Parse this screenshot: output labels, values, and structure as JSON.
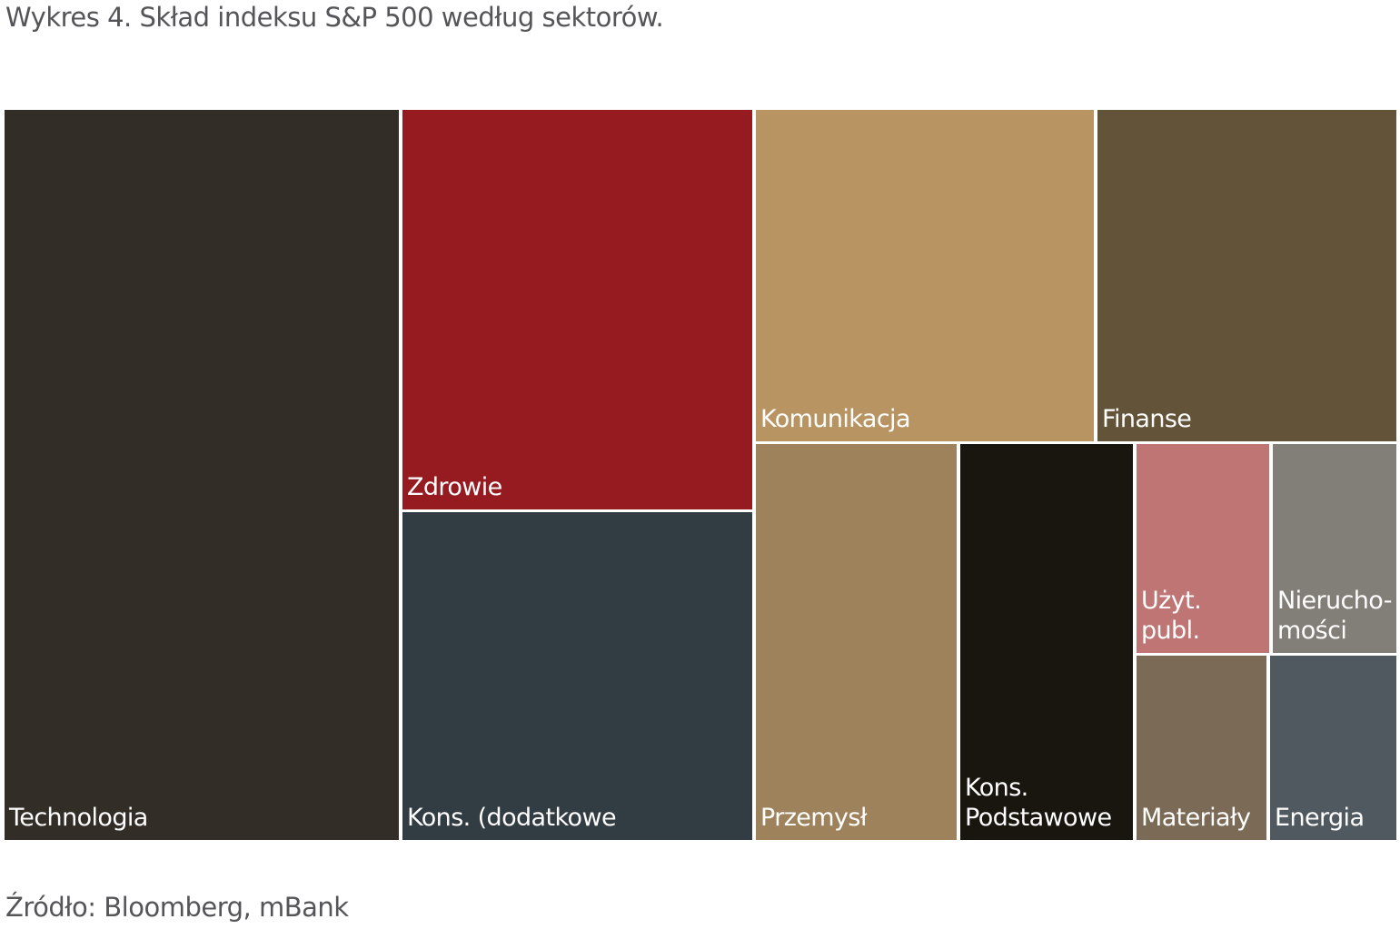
{
  "chart_data": {
    "type": "treemap",
    "title": "Wykres 4. Skład indeksu S&P 500 według sektorów.",
    "source": "Źródło: Bloomberg, mBank",
    "unit": "approx. % of index (estimated from area)",
    "items": [
      {
        "name": "Technologia",
        "lines": [
          "Technologia"
        ],
        "value": 28.3,
        "color": "#322d27"
      },
      {
        "name": "Zdrowie",
        "lines": [
          "Zdrowie"
        ],
        "value": 13.8,
        "color": "#951b21"
      },
      {
        "name": "Kons. (dodatkowe",
        "lines": [
          "Kons. (dodatkowe"
        ],
        "value": 11.3,
        "color": "#323c43"
      },
      {
        "name": "Komunikacja",
        "lines": [
          "Komunikacja"
        ],
        "value": 11.0,
        "color": "#b89462"
      },
      {
        "name": "Finanse",
        "lines": [
          "Finanse"
        ],
        "value": 9.8,
        "color": "#635338"
      },
      {
        "name": "Przemysł",
        "lines": [
          "Przemysł"
        ],
        "value": 7.8,
        "color": "#9e825b"
      },
      {
        "name": "Kons. Podstawowe",
        "lines": [
          "Kons.",
          "Podstawowe"
        ],
        "value": 6.7,
        "color": "#19160f"
      },
      {
        "name": "Użyt. publ.",
        "lines": [
          "Użyt.",
          "publ."
        ],
        "value": 2.7,
        "color": "#c07575"
      },
      {
        "name": "Nieruchomości",
        "lines": [
          "Nierucho-",
          "mości"
        ],
        "value": 2.5,
        "color": "#827e78"
      },
      {
        "name": "Materiały",
        "lines": [
          "Materiały"
        ],
        "value": 2.4,
        "color": "#7b6a55"
      },
      {
        "name": "Energia",
        "lines": [
          "Energia"
        ],
        "value": 2.3,
        "color": "#515960"
      }
    ]
  }
}
